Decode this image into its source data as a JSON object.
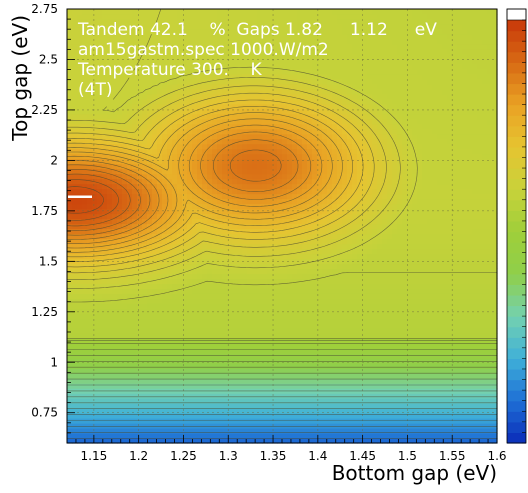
{
  "chart_data": {
    "type": "heatmap",
    "title": "",
    "annotation_lines": [
      "Tandem 42.1    %  Gaps 1.82     1.12     eV",
      "am15gastm.spec 1000.W/m2",
      "Temperature 300.    K",
      "(4T)"
    ],
    "xlabel": "Bottom gap (eV)",
    "ylabel": "Top gap (eV)",
    "xlim": [
      1.12,
      1.6
    ],
    "ylim": [
      0.6,
      2.75
    ],
    "xticks": [
      1.15,
      1.2,
      1.25,
      1.3,
      1.35,
      1.4,
      1.45,
      1.5,
      1.55,
      1.6
    ],
    "yticks": [
      0.75,
      1,
      1.25,
      1.5,
      1.75,
      2,
      2.25,
      2.5,
      2.75
    ],
    "xtick_labels": [
      "1.15",
      "1.2",
      "1.25",
      "1.3",
      "1.35",
      "1.4",
      "1.45",
      "1.5",
      "1.55",
      "1.6"
    ],
    "ytick_labels": [
      "0.75",
      "1",
      "1.25",
      "1.5",
      "1.75",
      "2",
      "2.25",
      "2.5",
      "2.75"
    ],
    "grid": true,
    "colorbar": true,
    "optimum_marker": {
      "x": 1.12,
      "y": 1.82
    },
    "peak_efficiency_percent": 42.1,
    "colormap": [
      "#0b2bb8",
      "#1e6fd6",
      "#3fb0d8",
      "#74d1b0",
      "#8fcf4a",
      "#9fcf3a",
      "#c8d23a",
      "#e6c431",
      "#e9a224",
      "#d86a14",
      "#c8380a"
    ]
  }
}
